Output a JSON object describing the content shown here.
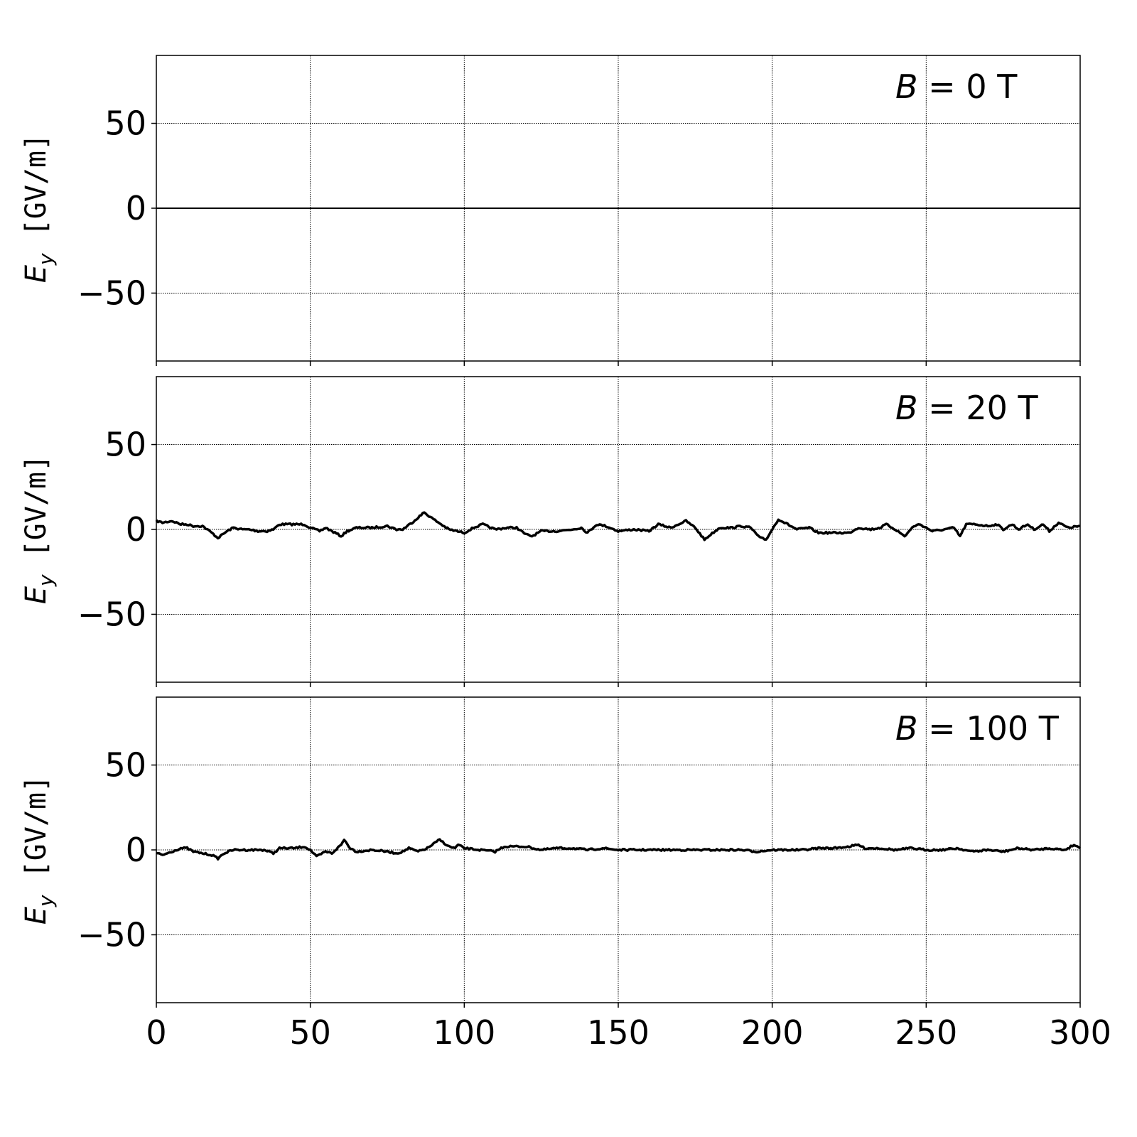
{
  "chart_data": [
    {
      "type": "line",
      "annotation": {
        "var": "B",
        "text": " = 0 T"
      },
      "ylabel": {
        "var": "E",
        "sub": "y",
        "unit": " [GV/m]"
      },
      "xlim": [
        0,
        300
      ],
      "ylim": [
        -90,
        90
      ],
      "xticks": [
        0,
        50,
        100,
        150,
        200,
        250,
        300
      ],
      "yticks": [
        50,
        0,
        -50
      ],
      "ytick_labels": [
        "50",
        "0",
        "−50"
      ],
      "grid": true,
      "color": "#000000",
      "x": [
        0,
        300
      ],
      "y": [
        0,
        0
      ]
    },
    {
      "type": "line",
      "annotation": {
        "var": "B",
        "text": " = 20 T"
      },
      "ylabel": {
        "var": "E",
        "sub": "y",
        "unit": " [GV/m]"
      },
      "xlim": [
        0,
        300
      ],
      "ylim": [
        -90,
        90
      ],
      "xticks": [
        0,
        50,
        100,
        150,
        200,
        250,
        300
      ],
      "yticks": [
        50,
        0,
        -50
      ],
      "ytick_labels": [
        "50",
        "0",
        "−50"
      ],
      "grid": true,
      "color": "#000000",
      "x": [
        0,
        2,
        5,
        8,
        10,
        12,
        15,
        18,
        20,
        23,
        25,
        28,
        30,
        33,
        36,
        38,
        40,
        45,
        48,
        50,
        53,
        55,
        57,
        60,
        62,
        65,
        70,
        75,
        78,
        80,
        83,
        87,
        90,
        95,
        100,
        103,
        106,
        110,
        114,
        117,
        120,
        122,
        125,
        130,
        135,
        138,
        140,
        143,
        146,
        150,
        155,
        160,
        163,
        167,
        172,
        175,
        178,
        180,
        183,
        187,
        190,
        193,
        196,
        198,
        200,
        202,
        205,
        208,
        212,
        215,
        220,
        225,
        228,
        232,
        235,
        237,
        240,
        243,
        246,
        248,
        252,
        256,
        259,
        261,
        263,
        266,
        270,
        273,
        275,
        278,
        280,
        283,
        285,
        288,
        290,
        293,
        296,
        300
      ],
      "y": [
        5,
        4,
        5,
        3,
        3,
        2,
        2,
        -2,
        -5,
        -1,
        1,
        0,
        0,
        -1,
        -1,
        0,
        3,
        3,
        3,
        1,
        -1,
        1,
        -1,
        -4,
        -1,
        1,
        1,
        2,
        0,
        0,
        4,
        10,
        6,
        0,
        -2,
        1,
        3,
        0,
        1,
        1,
        -3,
        -4,
        -1,
        -1,
        0,
        1,
        -2,
        3,
        2,
        -1,
        0,
        -1,
        3,
        1,
        5,
        1,
        -6,
        -3,
        1,
        1,
        2,
        1,
        -5,
        -6,
        0,
        6,
        3,
        0,
        1,
        -2,
        -2,
        -2,
        1,
        0,
        1,
        3,
        0,
        -4,
        2,
        3,
        -1,
        0,
        1,
        -4,
        3,
        3,
        2,
        3,
        0,
        3,
        0,
        3,
        0,
        3,
        -1,
        4,
        1,
        2
      ]
    },
    {
      "type": "line",
      "annotation": {
        "var": "B",
        "text": " = 100 T"
      },
      "ylabel": {
        "var": "E",
        "sub": "y",
        "unit": " [GV/m]"
      },
      "xlim": [
        0,
        300
      ],
      "ylim": [
        -90,
        90
      ],
      "xticks": [
        0,
        50,
        100,
        150,
        200,
        250,
        300
      ],
      "xtick_labels": [
        "0",
        "50",
        "100",
        "150",
        "200",
        "250",
        "300"
      ],
      "yticks": [
        50,
        0,
        -50
      ],
      "ytick_labels": [
        "50",
        "0",
        "−50"
      ],
      "grid": true,
      "color": "#000000",
      "x": [
        0,
        2,
        5,
        8,
        10,
        12,
        15,
        18,
        20,
        22,
        25,
        30,
        35,
        38,
        40,
        45,
        48,
        50,
        52,
        55,
        57,
        60,
        61,
        63,
        65,
        70,
        75,
        78,
        80,
        82,
        85,
        88,
        92,
        95,
        97,
        98,
        100,
        105,
        110,
        113,
        115,
        120,
        125,
        130,
        135,
        140,
        145,
        150,
        160,
        170,
        180,
        190,
        195,
        200,
        210,
        215,
        220,
        225,
        228,
        230,
        235,
        240,
        245,
        250,
        255,
        260,
        265,
        270,
        275,
        280,
        285,
        290,
        295,
        298,
        300
      ],
      "y": [
        -2,
        -3,
        -1,
        1,
        1,
        -1,
        -2,
        -3,
        -5,
        -2,
        0,
        0,
        0,
        -2,
        1,
        1,
        2,
        0,
        -4,
        -1,
        -2,
        3,
        6,
        1,
        -1,
        0,
        -1,
        -2,
        -1,
        1,
        -1,
        1,
        6,
        2,
        1,
        3,
        1,
        0,
        -1,
        2,
        2,
        2,
        0,
        1,
        1,
        0,
        1,
        0,
        0,
        0,
        0,
        0,
        -1,
        0,
        0,
        1,
        1,
        2,
        3,
        1,
        1,
        0,
        1,
        0,
        0,
        1,
        -1,
        0,
        -1,
        1,
        0,
        1,
        0,
        3,
        1
      ]
    }
  ]
}
